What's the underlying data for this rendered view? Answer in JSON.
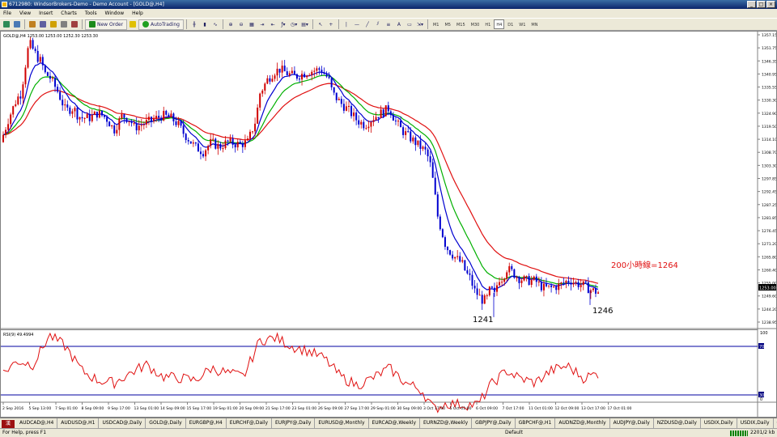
{
  "window": {
    "title": "6712980: WindsorBrokers-Demo - Demo Account - [GOLD@,H4]",
    "controls": [
      "_",
      "□",
      "×"
    ]
  },
  "menu": [
    "File",
    "View",
    "Insert",
    "Charts",
    "Tools",
    "Window",
    "Help"
  ],
  "toolbar": {
    "new_order": "New Order",
    "autotrading": "AutoTrading",
    "timeframes": [
      "M1",
      "M5",
      "M15",
      "M30",
      "H1",
      "H4",
      "D1",
      "W1",
      "MN"
    ],
    "active_timeframe": "H4",
    "text_tool": "A"
  },
  "chart": {
    "symbol_info": "GOLD@,H4  1253.00 1253.00 1252.30 1253.30",
    "last_price": "1253.00",
    "price_labels": [
      "1357.15",
      "1351.75",
      "1346.35",
      "1340.95",
      "1335.55",
      "1330.30",
      "1324.90",
      "1319.50",
      "1314.10",
      "1308.70",
      "1303.30",
      "1297.85",
      "1292.45",
      "1287.25",
      "1281.85",
      "1276.45",
      "1271.20",
      "1265.80",
      "1260.40",
      "1255.00",
      "1249.60",
      "1244.20",
      "1238.95"
    ],
    "annotations": {
      "ma200": "200小時線=1264",
      "low1": "1241",
      "low2": "1246"
    },
    "ma200_color": "#e01010",
    "ma_fast_color": "#0000d0",
    "ma_mid_color": "#00b000",
    "candle_up": "#d00000",
    "candle_down": "#0000d0",
    "rsi": {
      "label": "RSI(9) 49.4994",
      "scale_top": "100",
      "scale_bottom": "0",
      "level_upper": "70",
      "level_lower": "30",
      "color": "#e01010",
      "level_color": "#0000a0"
    },
    "time_labels": [
      "2 Sep 2016",
      "5 Sep 13:00",
      "7 Sep 01:00",
      "8 Sep 09:00",
      "9 Sep 17:00",
      "13 Sep 01:00",
      "14 Sep 09:00",
      "15 Sep 17:00",
      "19 Sep 01:00",
      "20 Sep 09:00",
      "21 Sep 17:00",
      "23 Sep 01:00",
      "26 Sep 09:00",
      "27 Sep 17:00",
      "29 Sep 01:00",
      "30 Sep 09:00",
      "3 Oct 17:00",
      "5 Oct 01:00",
      "6 Oct 09:00",
      "7 Oct 17:00",
      "11 Oct 01:00",
      "12 Oct 09:00",
      "13 Oct 17:00",
      "17 Oct 01:00"
    ]
  },
  "tabs": [
    "AUDCAD@,H4",
    "AUDUSD@,H1",
    "USDCAD@,Daily",
    "GOLD@,Daily",
    "EURGBP@,H4",
    "EURCHF@,Daily",
    "EURJPY@,Daily",
    "EURUSD@,Monthly",
    "EURCAD@,Weekly",
    "EURNZD@,Weekly",
    "GBPJPY@,Daily",
    "GBPCHF@,H1",
    "AUDNZD@,Monthly",
    "AUDJPY@,Daily",
    "NZDUSD@,Daily",
    "USDIX,Daily",
    "USDIX,Daily",
    "GBPUSD@,H4",
    "USDJPY@,Daily",
    "USDCHF@,Daily"
  ],
  "active_tab": "GOLD@,H4",
  "status": {
    "help": "For Help, press F1",
    "profile": "Default",
    "traffic": "2201/2 kb"
  },
  "ime": "漢"
}
